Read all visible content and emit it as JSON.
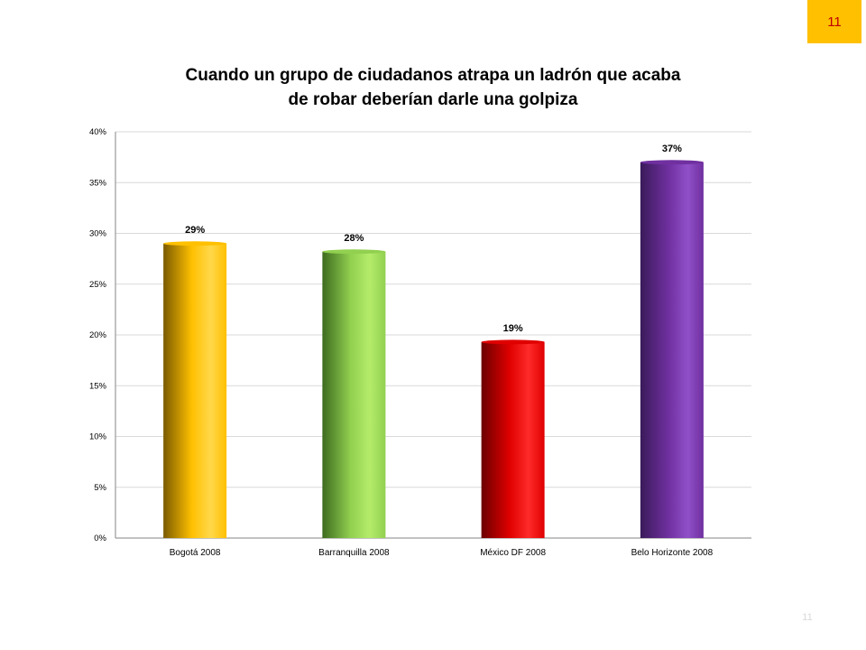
{
  "page_number": "11",
  "footer_page_number": "11",
  "chart_data": {
    "type": "bar",
    "title_lines": [
      "Cuando un grupo de ciudadanos atrapa un ladrón que acaba",
      "de robar deberían darle una golpiza"
    ],
    "categories": [
      "Bogotá 2008",
      "Barranquilla 2008",
      "México DF 2008",
      "Belo Horizonte 2008"
    ],
    "values": [
      29,
      28.2,
      19.3,
      37
    ],
    "data_labels": [
      "29%",
      "28%",
      "19%",
      "37%"
    ],
    "yticks": [
      0,
      5,
      10,
      15,
      20,
      25,
      30,
      35,
      40
    ],
    "ytick_labels": [
      "0%",
      "5%",
      "10%",
      "15%",
      "20%",
      "25%",
      "30%",
      "35%",
      "40%"
    ],
    "ylim": [
      0,
      40
    ],
    "grid": true,
    "legend": "none",
    "colors": [
      {
        "dark": "#7a5a00",
        "mid": "#ffc000",
        "light": "#ffd84a"
      },
      {
        "dark": "#3d6b1f",
        "mid": "#92d050",
        "light": "#b4ec6a"
      },
      {
        "dark": "#6b0000",
        "mid": "#e00000",
        "light": "#ff2a2a"
      },
      {
        "dark": "#3a1a5a",
        "mid": "#7030a0",
        "light": "#9050c8"
      }
    ],
    "grid_color": "#d9d9d9",
    "axis_color": "#868686"
  }
}
